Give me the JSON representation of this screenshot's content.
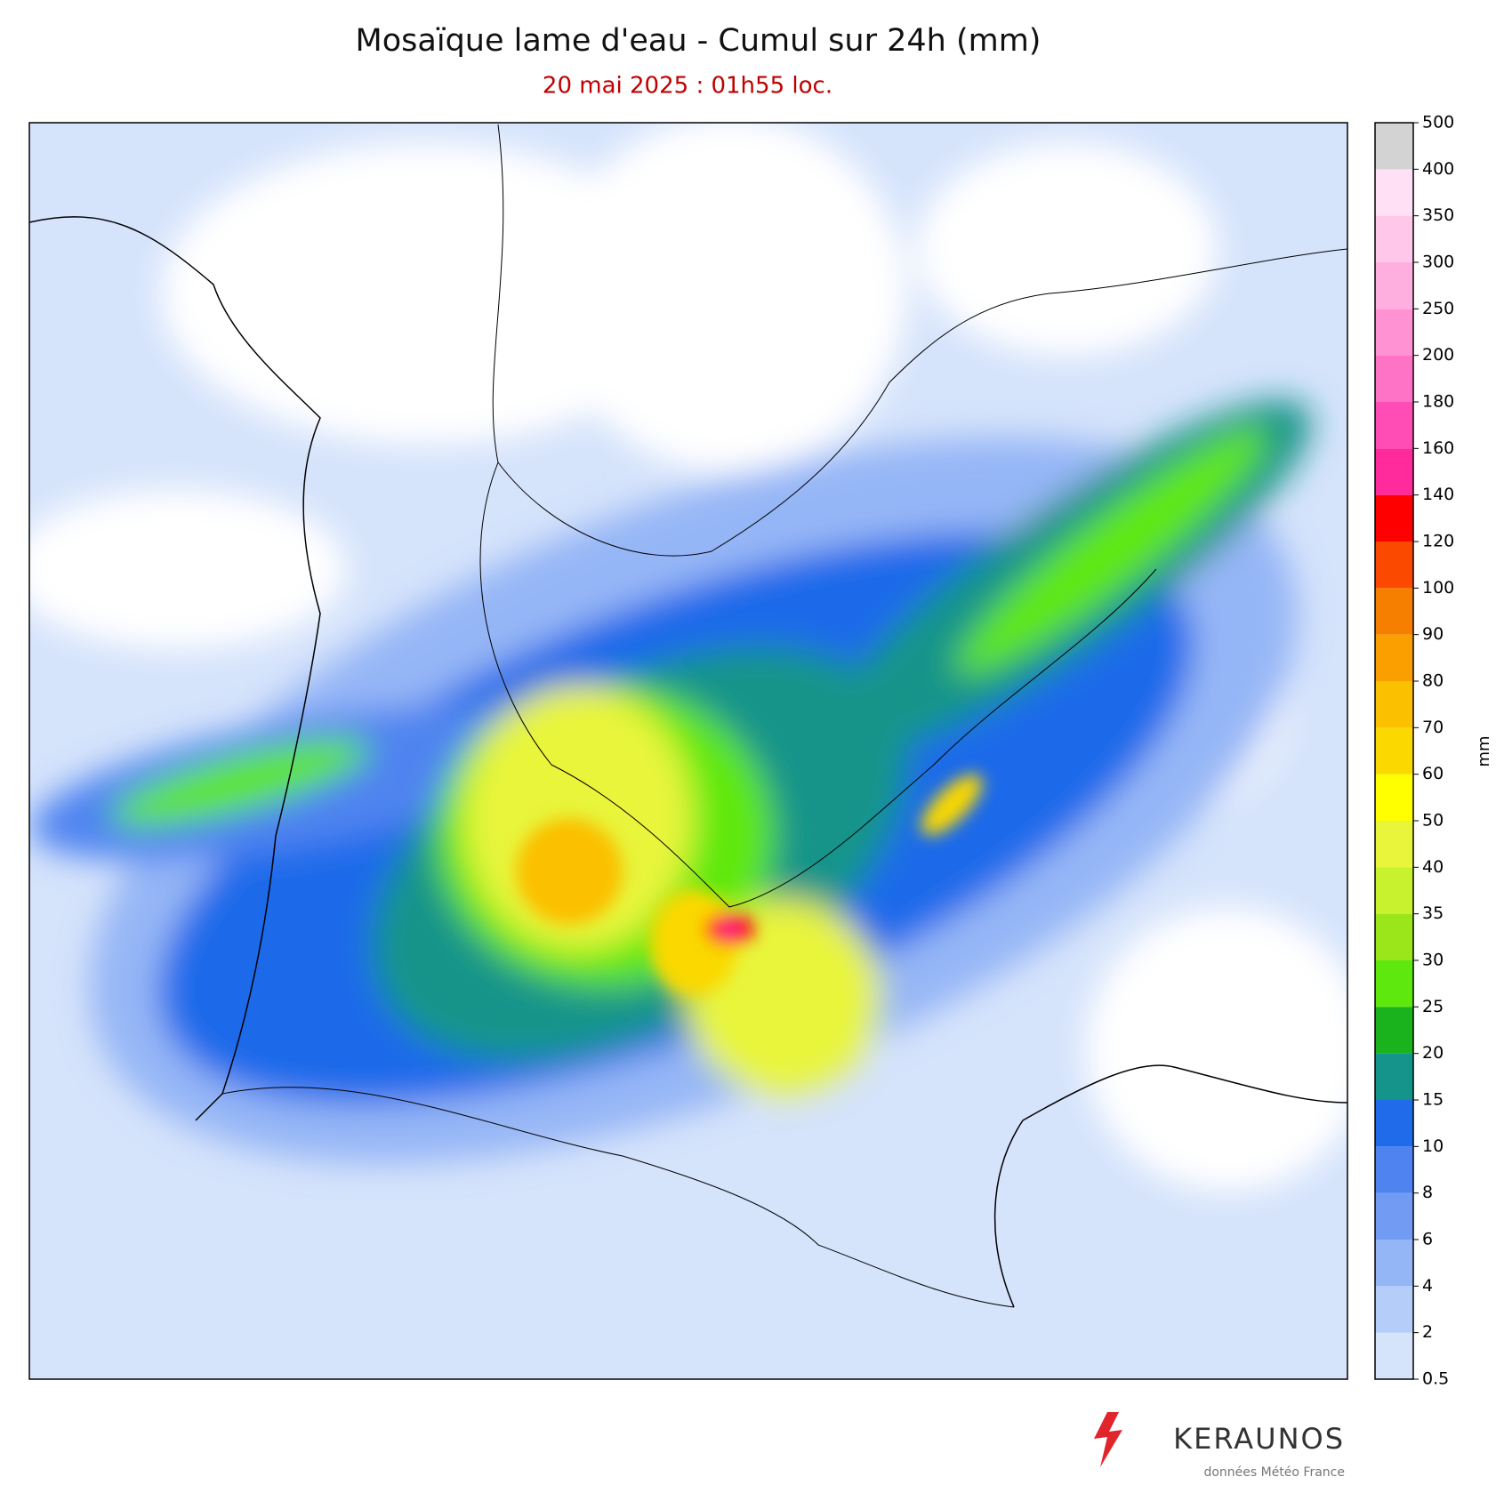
{
  "header": {
    "title": "Mosaïque lame d'eau - Cumul sur 24h (mm)",
    "subtitle": "20 mai 2025 : 01h55 loc."
  },
  "colorbar": {
    "label": "mm",
    "levels": [
      0.5,
      2,
      4,
      6,
      8,
      10,
      15,
      20,
      25,
      30,
      35,
      40,
      50,
      60,
      70,
      80,
      90,
      100,
      120,
      140,
      160,
      180,
      200,
      250,
      300,
      350,
      400,
      500
    ],
    "colors": [
      "#d5e3fb",
      "#b4cdf9",
      "#95b6f6",
      "#729cf3",
      "#4f84f0",
      "#1f6bea",
      "#14948a",
      "#1ab31e",
      "#5ee80d",
      "#9ae61a",
      "#c7f22d",
      "#e8f53a",
      "#ffff00",
      "#fbd800",
      "#fbc000",
      "#fb9f00",
      "#f77f00",
      "#fb4a00",
      "#ff0000",
      "#ff2a9b",
      "#ff4db5",
      "#ff73c6",
      "#ff92d2",
      "#ffaee0",
      "#ffc8ea",
      "#ffe0f4",
      "#d3d3d3"
    ]
  },
  "footer": {
    "brand": "KERAUNOS",
    "credit": "données Météo France"
  }
}
